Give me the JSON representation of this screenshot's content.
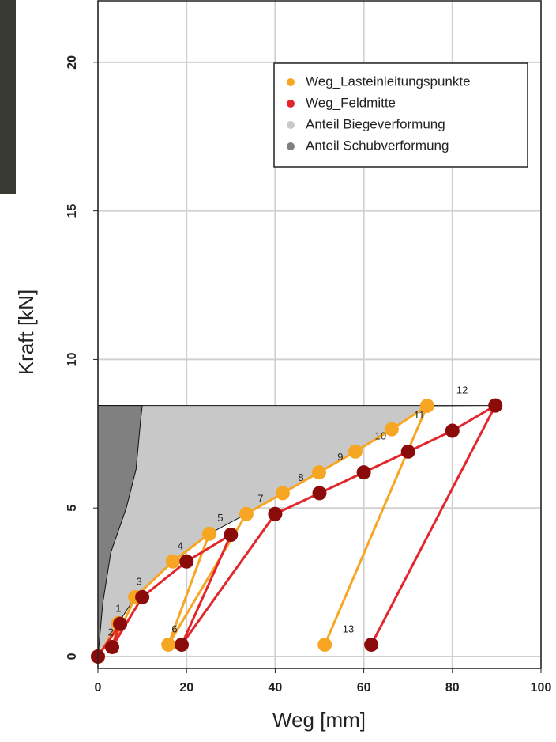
{
  "chart_data": {
    "type": "line",
    "x_label": "Weg [mm]",
    "y_label": "Kraft [kN]",
    "xlim": [
      0,
      100
    ],
    "ylim": [
      -0.4,
      22.1
    ],
    "xticks": [
      0,
      20,
      40,
      60,
      80,
      100
    ],
    "yticks": [
      0,
      5,
      10,
      15,
      20
    ],
    "grid": true,
    "legend": "top-right",
    "series": [
      {
        "name": "Weg_Lasteinleitungspunkte",
        "kind": "line",
        "color": "#f6a623",
        "marker_color": "#f6a623",
        "x": [
          0,
          4.6,
          3.2,
          8.4,
          16.9,
          25.1,
          15.9,
          33.5,
          41.7,
          49.9,
          58.1,
          66.3,
          74.3,
          51.2
        ],
        "values": [
          0,
          1.12,
          0.32,
          2.0,
          3.2,
          4.13,
          0.4,
          4.8,
          5.5,
          6.2,
          6.9,
          7.65,
          8.44,
          0.4
        ]
      },
      {
        "name": "Weg_Feldmitte",
        "kind": "line",
        "color": "#e3262b",
        "marker_color": "#8b0a0a",
        "x": [
          0,
          5.0,
          3.2,
          10,
          20,
          30,
          18.9,
          40,
          50,
          60,
          70,
          80,
          89.7,
          61.7
        ],
        "values": [
          0,
          1.1,
          0.32,
          2.0,
          3.2,
          4.1,
          0.4,
          4.8,
          5.5,
          6.2,
          6.9,
          7.6,
          8.45,
          0.4
        ]
      },
      {
        "name": "Anteil Biegeverformung",
        "kind": "area",
        "color": "#c8c8c8",
        "x": [
          0,
          4.6,
          8.4,
          16.9,
          25.1,
          33.5,
          41.7,
          49.9,
          58.1,
          66.3,
          74.3,
          90,
          0
        ],
        "values": [
          0,
          1.12,
          2.0,
          3.2,
          4.13,
          4.8,
          5.5,
          6.2,
          6.9,
          7.65,
          8.44,
          8.45,
          8.45
        ]
      },
      {
        "name": "Anteil Schubverformung",
        "kind": "area",
        "color": "#808080",
        "x": [
          0,
          1.1,
          2.9,
          6.4,
          8.6,
          9.6,
          10,
          0
        ],
        "values": [
          0,
          1.8,
          3.5,
          5.0,
          6.3,
          7.9,
          8.45,
          8.45
        ]
      }
    ],
    "annotations": [
      {
        "text": "1",
        "x": 4.6,
        "y": 1.6
      },
      {
        "text": "2",
        "x": 2.9,
        "y": 0.8
      },
      {
        "text": "3",
        "x": 9.3,
        "y": 2.5
      },
      {
        "text": "4",
        "x": 18.6,
        "y": 3.7
      },
      {
        "text": "5",
        "x": 27.6,
        "y": 4.65
      },
      {
        "text": "6",
        "x": 17.3,
        "y": 0.9
      },
      {
        "text": "7",
        "x": 36.7,
        "y": 5.3
      },
      {
        "text": "8",
        "x": 45.8,
        "y": 6.0
      },
      {
        "text": "9",
        "x": 54.7,
        "y": 6.7
      },
      {
        "text": "10",
        "x": 63.8,
        "y": 7.4
      },
      {
        "text": "11",
        "x": 72.5,
        "y": 8.1
      },
      {
        "text": "12",
        "x": 82.2,
        "y": 8.95
      },
      {
        "text": "13",
        "x": 56.5,
        "y": 0.9
      }
    ]
  }
}
